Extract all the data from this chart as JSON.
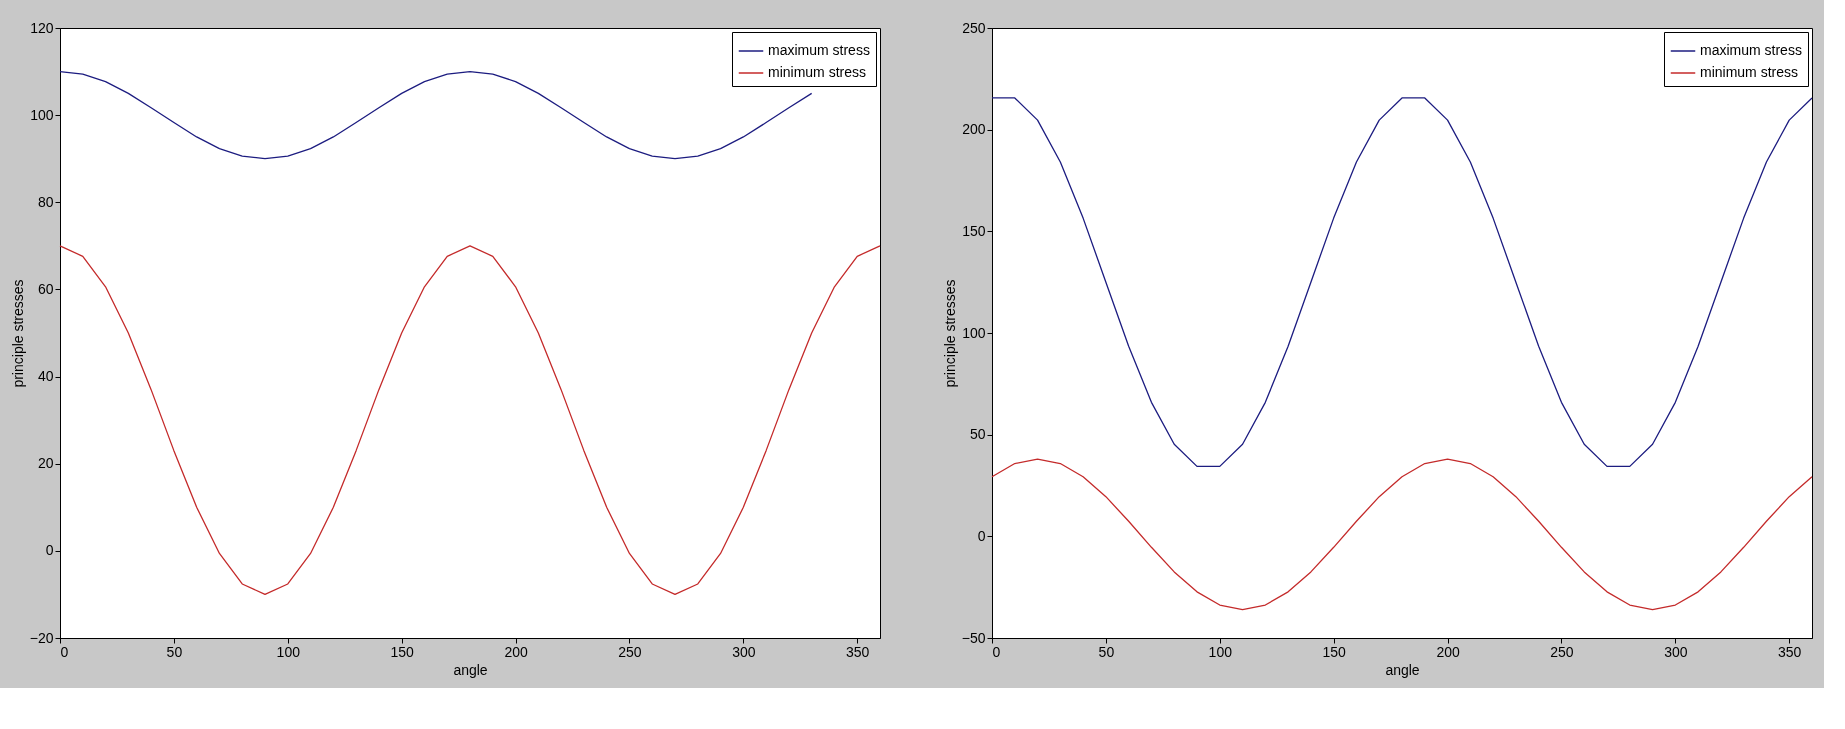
{
  "chart_data": [
    {
      "type": "line",
      "xlabel": "angle",
      "ylabel": "principle stresses",
      "xlim": [
        0,
        360
      ],
      "ylim": [
        -20,
        120
      ],
      "xticks": [
        0,
        50,
        100,
        150,
        200,
        250,
        300,
        350
      ],
      "yticks": [
        -20,
        0,
        20,
        40,
        60,
        80,
        100,
        120
      ],
      "legend": "top right",
      "line_style": "solid",
      "x": [
        0,
        10,
        20,
        30,
        40,
        50,
        60,
        70,
        80,
        90,
        100,
        110,
        120,
        130,
        140,
        150,
        160,
        170,
        180,
        190,
        200,
        210,
        220,
        230,
        240,
        250,
        260,
        270,
        280,
        290,
        300,
        310,
        320,
        330,
        340,
        350,
        360
      ],
      "series": [
        {
          "name": "maximum stress",
          "color": "#1c1c80",
          "values": [
            110,
            109.4,
            107.7,
            105,
            101.7,
            98.3,
            95,
            92.3,
            90.6,
            90,
            90.6,
            92.3,
            95,
            98.3,
            101.7,
            105,
            107.7,
            109.4,
            110,
            109.4,
            107.7,
            105,
            101.7,
            98.3,
            95,
            92.3,
            90.6,
            90,
            90.6,
            92.3,
            95,
            98.3,
            101.7,
            105,
            null,
            null,
            null
          ]
        },
        {
          "name": "minimum stress",
          "color": "#c42a2a",
          "values": [
            70,
            67.6,
            60.6,
            50,
            37,
            23,
            10,
            -0.6,
            -7.6,
            -10,
            -7.6,
            -0.6,
            10,
            23,
            37,
            50,
            60.6,
            67.6,
            70,
            67.6,
            60.6,
            50,
            37,
            23,
            10,
            -0.6,
            -7.6,
            -10,
            -7.6,
            -0.6,
            10,
            23,
            37,
            50,
            60.6,
            67.6,
            70
          ]
        }
      ]
    },
    {
      "type": "line",
      "xlabel": "angle",
      "ylabel": "principle stresses",
      "xlim": [
        0,
        360
      ],
      "ylim": [
        -50,
        250
      ],
      "xticks": [
        0,
        50,
        100,
        150,
        200,
        250,
        300,
        350
      ],
      "yticks": [
        -50,
        0,
        50,
        100,
        150,
        200,
        250
      ],
      "legend": "top right",
      "line_style": "solid",
      "x": [
        0,
        10,
        20,
        30,
        40,
        50,
        60,
        70,
        80,
        90,
        100,
        110,
        120,
        130,
        140,
        150,
        160,
        170,
        180,
        190,
        200,
        210,
        220,
        230,
        240,
        250,
        260,
        270,
        280,
        290,
        300,
        310,
        320,
        330,
        340,
        350,
        360
      ],
      "series": [
        {
          "name": "maximum stress",
          "color": "#1c1c80",
          "values": [
            215.6,
            215.6,
            204.7,
            184.1,
            156.5,
            125,
            93.5,
            65.9,
            45.3,
            34.4,
            34.4,
            45.3,
            65.9,
            93.5,
            125,
            156.5,
            184.1,
            204.7,
            215.6,
            215.6,
            204.7,
            184.1,
            156.5,
            125,
            93.5,
            65.9,
            45.3,
            34.4,
            34.4,
            45.3,
            65.9,
            93.5,
            125,
            156.5,
            184.1,
            204.7,
            215.6
          ]
        },
        {
          "name": "minimum stress",
          "color": "#c42a2a",
          "values": [
            29.3,
            35.8,
            38,
            35.8,
            29.3,
            19.5,
            7.4,
            -5.4,
            -17.5,
            -27.3,
            -33.8,
            -36,
            -33.8,
            -27.3,
            -17.5,
            -5.4,
            7.4,
            19.5,
            29.3,
            35.8,
            38,
            35.8,
            29.3,
            19.5,
            7.4,
            -5.4,
            -17.5,
            -27.3,
            -33.8,
            -36,
            -33.8,
            -27.3,
            -17.5,
            -5.4,
            7.4,
            19.5,
            29.3
          ]
        }
      ]
    }
  ]
}
